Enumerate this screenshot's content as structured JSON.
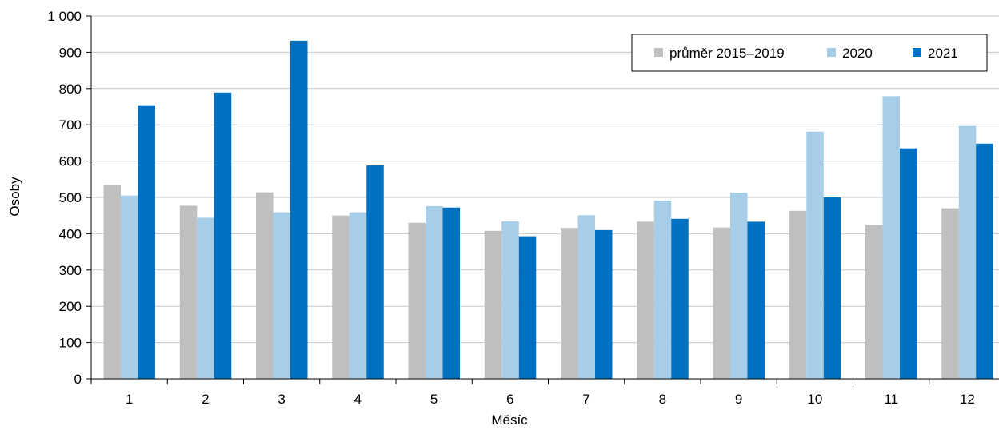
{
  "chart_data": {
    "type": "bar",
    "title": "",
    "xlabel": "Měsíc",
    "ylabel": "Osoby",
    "ylim": [
      0,
      1000
    ],
    "ytick_step": 100,
    "ytick_labels": [
      "0",
      "100",
      "200",
      "300",
      "400",
      "500",
      "600",
      "700",
      "800",
      "900",
      "1 000"
    ],
    "categories": [
      "1",
      "2",
      "3",
      "4",
      "5",
      "6",
      "7",
      "8",
      "9",
      "10",
      "11",
      "12"
    ],
    "grid": "horizontal",
    "legend_position": "top-right",
    "series": [
      {
        "name": "průměr 2015–2019",
        "color": "#bfbfbf",
        "values": [
          534,
          477,
          514,
          450,
          430,
          408,
          416,
          433,
          417,
          463,
          424,
          470
        ]
      },
      {
        "name": "2020",
        "color": "#a6cee8",
        "values": [
          505,
          444,
          459,
          459,
          476,
          434,
          451,
          491,
          513,
          681,
          779,
          697
        ]
      },
      {
        "name": "2021",
        "color": "#0070c0",
        "values": [
          754,
          789,
          932,
          588,
          472,
          393,
          410,
          441,
          433,
          500,
          635,
          648
        ]
      }
    ]
  }
}
